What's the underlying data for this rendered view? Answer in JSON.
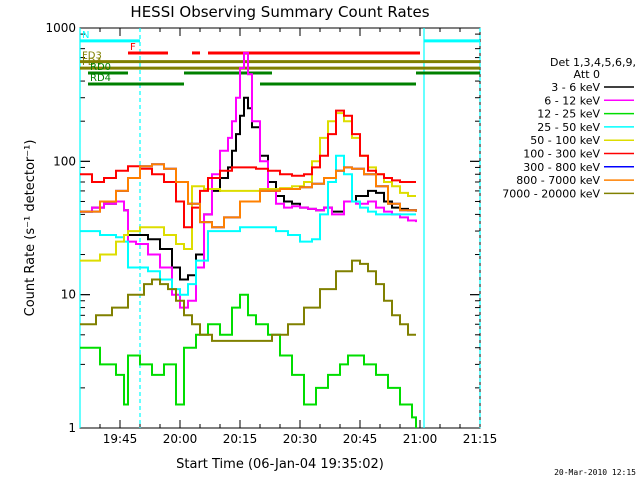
{
  "chart_data": {
    "type": "line",
    "title": "HESSI Observing Summary Count Rates",
    "xlabel": "Start Time (06-Jan-04 19:35:02)",
    "ylabel": "Count Rate (s⁻¹ detector⁻¹)",
    "footer": "20-Mar-2010 12:15",
    "x_unit": "minutes after 19:35:02",
    "xlim": [
      0,
      100
    ],
    "ylim": [
      1,
      1000
    ],
    "yscale": "log",
    "x_ticks": [
      {
        "label": "19:45",
        "x": 10
      },
      {
        "label": "20:00",
        "x": 25
      },
      {
        "label": "20:15",
        "x": 40
      },
      {
        "label": "20:30",
        "x": 55
      },
      {
        "label": "20:45",
        "x": 70
      },
      {
        "label": "21:00",
        "x": 85
      },
      {
        "label": "21:15",
        "x": 100
      }
    ],
    "y_ticks": [
      {
        "label": "1",
        "y": 1
      },
      {
        "label": "10",
        "y": 10
      },
      {
        "label": "100",
        "y": 100
      },
      {
        "label": "1000",
        "y": 1000
      }
    ],
    "legend": {
      "title_line1": "Det 1,3,4,5,6,9,",
      "title_line2": "Att 0",
      "placement": "right"
    },
    "series": [
      {
        "name": "3 - 6 keV",
        "color": "#000000",
        "x": [
          0,
          3,
          6,
          9,
          11,
          12,
          14,
          17,
          20,
          23,
          25,
          27,
          29,
          31,
          33,
          35,
          37,
          38,
          39,
          40,
          41,
          42,
          43,
          45,
          47,
          49,
          51,
          53,
          55,
          57,
          59,
          61,
          63,
          66,
          69,
          72,
          74,
          76,
          78,
          80,
          82,
          84
        ],
        "y": [
          42,
          45,
          48,
          50,
          43,
          28,
          28,
          26,
          22,
          16,
          13,
          14,
          20,
          40,
          60,
          75,
          90,
          120,
          160,
          220,
          300,
          250,
          180,
          110,
          70,
          55,
          50,
          48,
          45,
          44,
          43,
          45,
          42,
          50,
          55,
          60,
          58,
          50,
          45,
          44,
          43,
          42
        ]
      },
      {
        "name": "6 - 12 keV",
        "color": "#ff00ff",
        "x": [
          0,
          3,
          6,
          9,
          11,
          12,
          14,
          17,
          20,
          23,
          25,
          27,
          29,
          31,
          33,
          35,
          37,
          38,
          39,
          40,
          41,
          42,
          43,
          45,
          47,
          49,
          51,
          53,
          55,
          57,
          59,
          61,
          63,
          66,
          69,
          72,
          74,
          76,
          78,
          80,
          82,
          84
        ],
        "y": [
          42,
          45,
          48,
          50,
          43,
          25,
          24,
          20,
          16,
          10,
          8,
          9,
          16,
          40,
          80,
          120,
          150,
          200,
          300,
          500,
          650,
          450,
          200,
          100,
          60,
          48,
          45,
          46,
          45,
          44,
          43,
          45,
          40,
          50,
          48,
          50,
          45,
          42,
          40,
          38,
          36,
          35
        ]
      },
      {
        "name": "12 - 25 keV",
        "color": "#00dd00",
        "x": [
          0,
          5,
          9,
          11,
          12,
          15,
          18,
          21,
          24,
          26,
          29,
          32,
          35,
          38,
          40,
          42,
          44,
          47,
          50,
          53,
          56,
          59,
          62,
          65,
          67,
          69,
          71,
          74,
          77,
          80,
          83,
          84
        ],
        "y": [
          4,
          3,
          2.5,
          1.5,
          3.5,
          3,
          2.5,
          3,
          1.5,
          4,
          5,
          6,
          5,
          8,
          10,
          7,
          6,
          5,
          3.5,
          2.5,
          1.5,
          2,
          2.5,
          3,
          3.5,
          3.5,
          3,
          2.5,
          2,
          1.5,
          1.2,
          1
        ]
      },
      {
        "name": "25 - 50 keV",
        "color": "#00ffff",
        "x": [
          0,
          5,
          9,
          11,
          12,
          14,
          17,
          20,
          23,
          25,
          27,
          29,
          32,
          36,
          40,
          43,
          46,
          49,
          52,
          55,
          58,
          60,
          62,
          64,
          66,
          68,
          70,
          72,
          74,
          76,
          78,
          80,
          82,
          84
        ],
        "y": [
          30,
          28,
          27,
          25,
          16,
          16,
          15,
          13,
          11,
          10,
          12,
          18,
          30,
          30,
          32,
          32,
          32,
          30,
          28,
          25,
          26,
          40,
          70,
          110,
          80,
          50,
          45,
          42,
          40,
          40,
          40,
          40,
          40,
          40
        ]
      },
      {
        "name": "50 - 100 keV",
        "color": "#dddd00",
        "x": [
          0,
          5,
          9,
          11,
          12,
          15,
          18,
          21,
          24,
          26,
          28,
          31,
          35,
          40,
          45,
          50,
          53,
          56,
          58,
          60,
          62,
          64,
          66,
          68,
          70,
          72,
          74,
          76,
          78,
          80,
          82,
          84
        ],
        "y": [
          18,
          20,
          25,
          28,
          30,
          32,
          32,
          28,
          24,
          22,
          65,
          62,
          60,
          60,
          62,
          63,
          65,
          70,
          100,
          150,
          200,
          230,
          200,
          150,
          110,
          90,
          80,
          70,
          65,
          58,
          55,
          55
        ]
      },
      {
        "name": "100 - 300 keV",
        "color": "#ff0000",
        "x": [
          0,
          3,
          6,
          9,
          12,
          15,
          18,
          21,
          24,
          26,
          28,
          30,
          32,
          35,
          38,
          41,
          44,
          47,
          50,
          53,
          56,
          58,
          60,
          62,
          64,
          66,
          68,
          70,
          72,
          74,
          76,
          78,
          80,
          82,
          84
        ],
        "y": [
          80,
          70,
          75,
          85,
          92,
          88,
          80,
          70,
          50,
          32,
          45,
          60,
          75,
          85,
          90,
          90,
          88,
          85,
          80,
          78,
          80,
          90,
          110,
          160,
          240,
          220,
          160,
          110,
          85,
          80,
          75,
          72,
          70,
          70,
          70
        ]
      },
      {
        "name": "300 - 800 keV",
        "color": "#0000ff",
        "x": [
          0,
          5,
          9,
          12,
          15,
          18,
          21,
          24,
          27,
          30,
          33,
          36,
          40,
          45,
          50,
          55,
          58,
          61,
          64,
          66,
          68,
          71,
          74,
          77,
          80,
          84
        ],
        "y": [
          42,
          50,
          60,
          75,
          92,
          95,
          88,
          70,
          48,
          35,
          32,
          38,
          50,
          60,
          62,
          64,
          68,
          75,
          85,
          90,
          88,
          80,
          65,
          48,
          43,
          42
        ]
      },
      {
        "name": "800 - 7000 keV",
        "color": "#ff8000",
        "x": [
          0,
          5,
          9,
          12,
          15,
          18,
          21,
          24,
          27,
          30,
          33,
          36,
          40,
          45,
          50,
          55,
          58,
          61,
          64,
          66,
          68,
          71,
          74,
          77,
          80,
          84
        ],
        "y": [
          42,
          50,
          60,
          75,
          92,
          95,
          88,
          70,
          48,
          35,
          32,
          38,
          50,
          60,
          62,
          64,
          68,
          75,
          85,
          90,
          88,
          80,
          65,
          48,
          43,
          42
        ]
      },
      {
        "name": "7000 - 20000 keV",
        "color": "#808000",
        "x": [
          0,
          4,
          8,
          12,
          16,
          18,
          20,
          22,
          24,
          26,
          28,
          30,
          33,
          36,
          40,
          44,
          48,
          52,
          56,
          60,
          64,
          68,
          70,
          72,
          74,
          76,
          78,
          80,
          82,
          84
        ],
        "y": [
          6,
          7,
          8,
          10,
          12,
          13,
          12,
          11,
          9,
          7,
          6,
          5,
          4.5,
          4.5,
          4.5,
          4.5,
          5,
          6,
          8,
          11,
          15,
          18,
          17,
          15,
          12,
          9,
          7,
          6,
          5,
          5
        ]
      }
    ],
    "state_bars": [
      {
        "label": "N",
        "color": "#00ffff",
        "y": 800,
        "segments": [
          [
            0,
            15
          ],
          [
            86,
            100
          ]
        ]
      },
      {
        "label": "F",
        "color": "#ff0000",
        "y": 650,
        "segments": [
          [
            12,
            22
          ],
          [
            28,
            30
          ],
          [
            32,
            85
          ]
        ]
      },
      {
        "label": "FD3",
        "color": "#808000",
        "y": 560,
        "segments": [
          [
            0,
            100
          ]
        ]
      },
      {
        "label": "FD4",
        "color": "#808000",
        "y": 500,
        "segments": [
          [
            0,
            100
          ]
        ]
      },
      {
        "label": "RD0",
        "color": "#008000",
        "y": 460,
        "segments": [
          [
            2,
            12
          ],
          [
            26,
            48
          ],
          [
            84,
            100
          ]
        ]
      },
      {
        "label": "RD4",
        "color": "#008000",
        "y": 380,
        "segments": [
          [
            2,
            26
          ],
          [
            45,
            84
          ]
        ]
      }
    ],
    "vlines": [
      {
        "x": 0,
        "color": "#00ffff",
        "style": "solid"
      },
      {
        "x": 15,
        "color": "#00ffff",
        "style": "dashed"
      },
      {
        "x": 86,
        "color": "#00ffff",
        "style": "solid"
      },
      {
        "x": 100,
        "color": "#00ffff",
        "style": "dashed"
      }
    ]
  }
}
